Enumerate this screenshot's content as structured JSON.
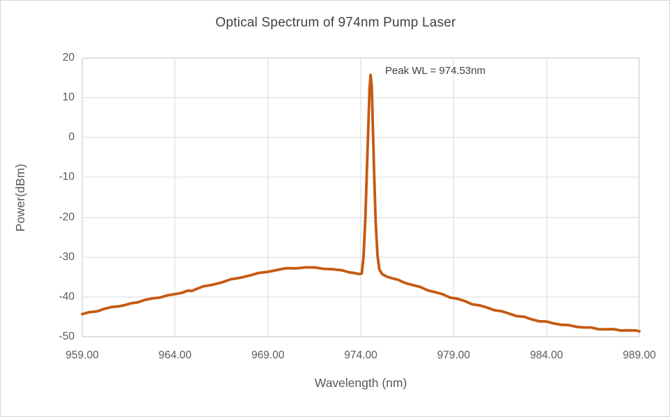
{
  "colors": {
    "line": "#C55A11",
    "grid": "#D9D9D9",
    "plot_border": "#D9D9D9",
    "axis_text": "#595959",
    "title_text": "#404040",
    "frame_border": "#D6D6D6",
    "background": "#FFFFFF"
  },
  "chart_data": {
    "type": "line",
    "title": "Optical Spectrum of 974nm Pump Laser",
    "xlabel": "Wavelength (nm)",
    "ylabel": "Power(dBm)",
    "xlim": [
      959,
      989
    ],
    "ylim": [
      -50,
      20
    ],
    "grid": true,
    "legend": "none",
    "x_ticks": [
      {
        "value": 959,
        "label": "959.00"
      },
      {
        "value": 964,
        "label": "964.00"
      },
      {
        "value": 969,
        "label": "969.00"
      },
      {
        "value": 974,
        "label": "974.00"
      },
      {
        "value": 979,
        "label": "979.00"
      },
      {
        "value": 984,
        "label": "984.00"
      },
      {
        "value": 989,
        "label": "989.00"
      }
    ],
    "y_ticks": [
      {
        "value": 20,
        "label": "20"
      },
      {
        "value": 10,
        "label": "10"
      },
      {
        "value": 0,
        "label": "0"
      },
      {
        "value": -10,
        "label": "-10"
      },
      {
        "value": -20,
        "label": "-20"
      },
      {
        "value": -30,
        "label": "-30"
      },
      {
        "value": -40,
        "label": "-40"
      },
      {
        "value": -50,
        "label": "-50"
      }
    ],
    "annotation": {
      "text": "Peak WL = 974.53nm",
      "x_nm": 975.3,
      "y_dbm": 16.3
    },
    "peak": {
      "wavelength_nm": 974.53,
      "power_dbm": 15.7
    },
    "series": [
      {
        "name": "pump-laser-spectrum",
        "color": "#C55A11",
        "stroke_width": 3.8,
        "points": [
          [
            959.0,
            -44.3
          ],
          [
            959.4,
            -43.9
          ],
          [
            959.8,
            -43.5
          ],
          [
            960.2,
            -43.0
          ],
          [
            960.6,
            -42.6
          ],
          [
            961.0,
            -42.2
          ],
          [
            961.3,
            -42.1
          ],
          [
            961.6,
            -41.7
          ],
          [
            962.0,
            -41.2
          ],
          [
            962.4,
            -40.8
          ],
          [
            962.8,
            -40.4
          ],
          [
            963.2,
            -40.0
          ],
          [
            963.6,
            -39.7
          ],
          [
            964.0,
            -39.3
          ],
          [
            964.4,
            -38.8
          ],
          [
            964.7,
            -38.5
          ],
          [
            964.9,
            -38.5
          ],
          [
            965.1,
            -38.0
          ],
          [
            965.5,
            -37.5
          ],
          [
            966.0,
            -36.9
          ],
          [
            966.5,
            -36.3
          ],
          [
            967.0,
            -35.7
          ],
          [
            967.5,
            -35.1
          ],
          [
            968.0,
            -34.6
          ],
          [
            968.5,
            -34.1
          ],
          [
            969.0,
            -33.6
          ],
          [
            969.5,
            -33.2
          ],
          [
            970.0,
            -32.9
          ],
          [
            970.5,
            -32.7
          ],
          [
            971.0,
            -32.6
          ],
          [
            971.5,
            -32.7
          ],
          [
            972.0,
            -32.8
          ],
          [
            972.5,
            -33.1
          ],
          [
            973.0,
            -33.4
          ],
          [
            973.4,
            -33.7
          ],
          [
            973.7,
            -34.1
          ],
          [
            973.9,
            -34.3
          ],
          [
            974.05,
            -34.0
          ],
          [
            974.15,
            -30.0
          ],
          [
            974.25,
            -20.0
          ],
          [
            974.33,
            -8.0
          ],
          [
            974.41,
            3.0
          ],
          [
            974.47,
            12.0
          ],
          [
            974.53,
            15.7
          ],
          [
            974.59,
            13.0
          ],
          [
            974.65,
            3.0
          ],
          [
            974.72,
            -9.0
          ],
          [
            974.8,
            -21.0
          ],
          [
            974.9,
            -29.5
          ],
          [
            975.0,
            -33.0
          ],
          [
            975.15,
            -34.4
          ],
          [
            975.4,
            -34.8
          ],
          [
            975.7,
            -35.3
          ],
          [
            976.0,
            -35.8
          ],
          [
            976.4,
            -36.4
          ],
          [
            976.8,
            -37.0
          ],
          [
            977.2,
            -37.6
          ],
          [
            977.6,
            -38.2
          ],
          [
            978.0,
            -38.8
          ],
          [
            978.4,
            -39.4
          ],
          [
            978.8,
            -40.0
          ],
          [
            979.2,
            -40.5
          ],
          [
            979.6,
            -41.1
          ],
          [
            980.0,
            -41.7
          ],
          [
            980.4,
            -42.2
          ],
          [
            980.8,
            -42.7
          ],
          [
            981.2,
            -43.2
          ],
          [
            981.6,
            -43.7
          ],
          [
            982.0,
            -44.2
          ],
          [
            982.4,
            -44.7
          ],
          [
            982.8,
            -45.1
          ],
          [
            983.2,
            -45.6
          ],
          [
            983.6,
            -46.0
          ],
          [
            984.0,
            -46.3
          ],
          [
            984.4,
            -46.6
          ],
          [
            984.8,
            -46.9
          ],
          [
            985.2,
            -47.2
          ],
          [
            985.6,
            -47.4
          ],
          [
            986.0,
            -47.6
          ],
          [
            986.4,
            -47.8
          ],
          [
            986.8,
            -48.0
          ],
          [
            987.2,
            -48.1
          ],
          [
            987.6,
            -48.2
          ],
          [
            988.0,
            -48.3
          ],
          [
            988.4,
            -48.4
          ],
          [
            988.8,
            -48.5
          ],
          [
            989.0,
            -48.5
          ]
        ]
      }
    ]
  }
}
